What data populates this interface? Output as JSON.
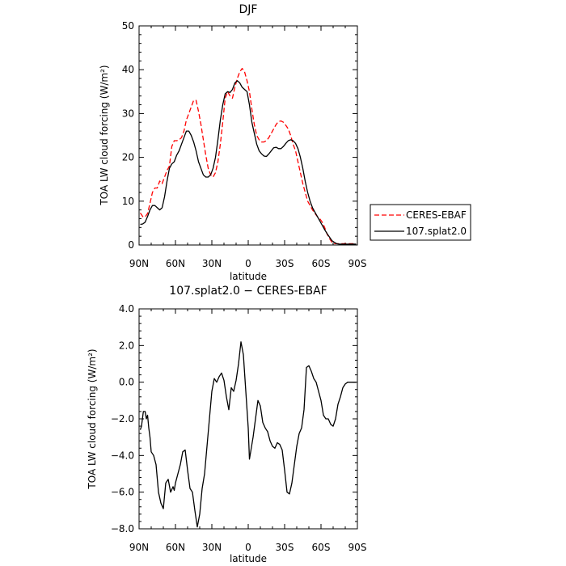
{
  "chart_data": [
    {
      "type": "line",
      "title": "DJF",
      "xlabel": "latitude",
      "ylabel": "TOA LW cloud forcing (W/m²)",
      "xlim": [
        90,
        -90
      ],
      "ylim": [
        0,
        50
      ],
      "x_ticks": [
        90,
        60,
        30,
        0,
        -30,
        -60,
        -90
      ],
      "x_tick_labels": [
        "90N",
        "60N",
        "30N",
        "0",
        "30S",
        "60S",
        "90S"
      ],
      "y_ticks": [
        0,
        10,
        20,
        30,
        40,
        50
      ],
      "y_tick_labels": [
        "0",
        "10",
        "20",
        "30",
        "40",
        "50"
      ],
      "legend_position": "right",
      "series": [
        {
          "name": "CERES-EBAF",
          "color": "#ff0000",
          "dashed": true,
          "x": [
            89,
            87,
            85,
            83,
            81,
            79,
            77,
            75,
            73,
            71,
            69,
            67,
            65,
            63,
            61,
            59,
            57,
            55,
            53,
            51,
            49,
            47,
            45,
            43,
            41,
            39,
            37,
            35,
            33,
            31,
            29,
            27,
            25,
            23,
            21,
            19,
            17,
            15,
            13,
            11,
            9,
            7,
            5,
            3,
            1,
            -1,
            -3,
            -5,
            -7,
            -9,
            -11,
            -13,
            -15,
            -17,
            -19,
            -21,
            -23,
            -25,
            -27,
            -29,
            -31,
            -33,
            -35,
            -37,
            -39,
            -41,
            -43,
            -45,
            -47,
            -49,
            -51,
            -53,
            -55,
            -57,
            -59,
            -61,
            -63,
            -65,
            -67,
            -69,
            -71,
            -73,
            -75,
            -77,
            -79,
            -81,
            -83,
            -85,
            -87,
            -89
          ],
          "y": [
            7.3,
            6.5,
            6.4,
            7.2,
            9.5,
            12.0,
            13.0,
            13.0,
            14.6,
            14.0,
            15.5,
            17.0,
            18.0,
            22.5,
            23.8,
            23.8,
            24.0,
            24.5,
            26.0,
            28.5,
            30.0,
            31.5,
            33.0,
            33.0,
            30.5,
            27.5,
            24.0,
            20.5,
            17.5,
            16.0,
            15.5,
            16.5,
            19.0,
            23.0,
            28.0,
            33.5,
            35.0,
            34.0,
            33.5,
            36.0,
            38.0,
            39.5,
            40.3,
            39.5,
            37.5,
            35.0,
            31.0,
            27.5,
            25.0,
            24.0,
            23.5,
            23.5,
            23.8,
            24.5,
            25.5,
            26.5,
            27.5,
            28.2,
            28.3,
            28.0,
            27.3,
            26.5,
            25.0,
            23.0,
            21.5,
            19.0,
            16.5,
            14.0,
            12.0,
            10.0,
            9.0,
            8.0,
            7.2,
            6.5,
            6.0,
            5.2,
            4.0,
            2.5,
            1.5,
            0.6,
            0.3,
            0.3,
            0.3,
            0.3,
            0.3,
            0.3,
            0.3,
            0.3,
            0.3,
            0.3
          ]
        },
        {
          "name": "107.splat2.0",
          "color": "#000000",
          "dashed": false,
          "x": [
            89,
            87,
            85,
            83,
            81,
            79,
            77,
            75,
            73,
            71,
            69,
            67,
            65,
            63,
            61,
            59,
            57,
            55,
            53,
            51,
            49,
            47,
            45,
            43,
            41,
            39,
            37,
            35,
            33,
            31,
            29,
            27,
            25,
            23,
            21,
            19,
            17,
            15,
            13,
            11,
            9,
            7,
            5,
            3,
            1,
            -1,
            -3,
            -5,
            -7,
            -9,
            -11,
            -13,
            -15,
            -17,
            -19,
            -21,
            -23,
            -25,
            -27,
            -29,
            -31,
            -33,
            -35,
            -37,
            -39,
            -41,
            -43,
            -45,
            -47,
            -49,
            -51,
            -53,
            -55,
            -57,
            -59,
            -61,
            -63,
            -65,
            -67,
            -69,
            -71,
            -73,
            -75,
            -77,
            -79,
            -81,
            -83,
            -85,
            -87,
            -89
          ],
          "y": [
            4.7,
            4.8,
            5.2,
            6.5,
            8.0,
            9.0,
            9.0,
            8.5,
            8.0,
            8.5,
            11.0,
            14.5,
            17.5,
            18.5,
            19.0,
            20.5,
            21.5,
            23.0,
            24.5,
            26.0,
            26.0,
            25.0,
            23.5,
            21.5,
            19.0,
            17.5,
            16.0,
            15.5,
            15.5,
            16.0,
            17.5,
            20.0,
            24.0,
            28.5,
            32.0,
            34.5,
            35.0,
            34.8,
            35.5,
            37.0,
            37.5,
            37.0,
            36.0,
            35.5,
            35.0,
            32.0,
            28.0,
            25.5,
            23.0,
            21.5,
            20.8,
            20.3,
            20.2,
            20.8,
            21.5,
            22.2,
            22.3,
            22.0,
            22.0,
            22.5,
            23.2,
            23.8,
            24.0,
            23.8,
            23.2,
            22.0,
            20.0,
            17.5,
            14.5,
            12.0,
            10.0,
            8.5,
            7.5,
            6.5,
            5.5,
            4.5,
            3.5,
            2.6,
            1.8,
            1.0,
            0.6,
            0.3,
            0.2,
            0.2,
            0.2,
            0.2,
            0.2,
            0.2,
            0.2,
            0.2
          ]
        }
      ]
    },
    {
      "type": "line",
      "title": "107.splat2.0 − CERES-EBAF",
      "xlabel": "latitude",
      "ylabel": "TOA LW cloud forcing (W/m²)",
      "xlim": [
        90,
        -90
      ],
      "ylim": [
        -8.0,
        4.0
      ],
      "x_ticks": [
        90,
        60,
        30,
        0,
        -30,
        -60,
        -90
      ],
      "x_tick_labels": [
        "90N",
        "60N",
        "30N",
        "0",
        "30S",
        "60S",
        "90S"
      ],
      "y_ticks": [
        -8,
        -6,
        -4,
        -2,
        0,
        2,
        4
      ],
      "y_tick_labels": [
        "−8.0",
        "−6.0",
        "−4.0",
        "−2.0",
        "0.0",
        "2.0",
        "4.0"
      ],
      "series": [
        {
          "color": "#000000",
          "x": [
            89,
            88,
            86.5,
            85,
            84,
            83,
            82,
            81,
            80,
            78,
            76,
            74,
            72,
            70,
            68,
            66,
            64,
            62,
            61,
            60,
            58,
            56,
            54,
            52,
            50,
            48,
            46,
            44,
            42,
            40,
            38,
            36,
            34,
            32,
            30,
            28,
            26,
            24,
            22,
            20,
            18,
            16,
            14,
            12,
            10,
            8,
            6,
            4,
            2,
            0,
            -1,
            -2,
            -4,
            -6,
            -8,
            -10,
            -12,
            -14,
            -16,
            -18,
            -20,
            -22,
            -24,
            -26,
            -28,
            -30,
            -32,
            -34,
            -36,
            -38,
            -40,
            -42,
            -44,
            -46,
            -48,
            -50,
            -52,
            -54,
            -56,
            -58,
            -60,
            -62,
            -64,
            -66,
            -68,
            -70,
            -72,
            -74,
            -76,
            -78,
            -80,
            -82,
            -84,
            -86,
            -88,
            -89
          ],
          "y": [
            -2.6,
            -2.4,
            -1.6,
            -1.6,
            -2.0,
            -1.8,
            -2.5,
            -3.0,
            -3.8,
            -4.0,
            -4.5,
            -6.0,
            -6.6,
            -6.9,
            -5.5,
            -5.3,
            -6.0,
            -5.7,
            -5.9,
            -5.5,
            -5.0,
            -4.5,
            -3.8,
            -3.7,
            -4.8,
            -5.8,
            -6.0,
            -7.0,
            -7.9,
            -7.2,
            -5.8,
            -5.0,
            -3.5,
            -2.0,
            -0.5,
            0.2,
            0.0,
            0.3,
            0.5,
            0.1,
            -0.8,
            -1.5,
            -0.3,
            -0.5,
            0.1,
            1.0,
            2.2,
            1.5,
            -0.5,
            -2.5,
            -4.2,
            -3.8,
            -3.0,
            -2.0,
            -1.0,
            -1.3,
            -2.2,
            -2.5,
            -2.7,
            -3.2,
            -3.5,
            -3.6,
            -3.3,
            -3.4,
            -3.7,
            -4.8,
            -6.0,
            -6.1,
            -5.5,
            -4.5,
            -3.5,
            -2.8,
            -2.5,
            -1.5,
            0.8,
            0.9,
            0.6,
            0.2,
            0.0,
            -0.5,
            -1.0,
            -1.8,
            -2.0,
            -2.0,
            -2.3,
            -2.4,
            -2.0,
            -1.2,
            -0.8,
            -0.3,
            -0.1,
            0.0,
            0.0,
            0.0,
            0.0,
            0.0
          ]
        }
      ]
    }
  ]
}
